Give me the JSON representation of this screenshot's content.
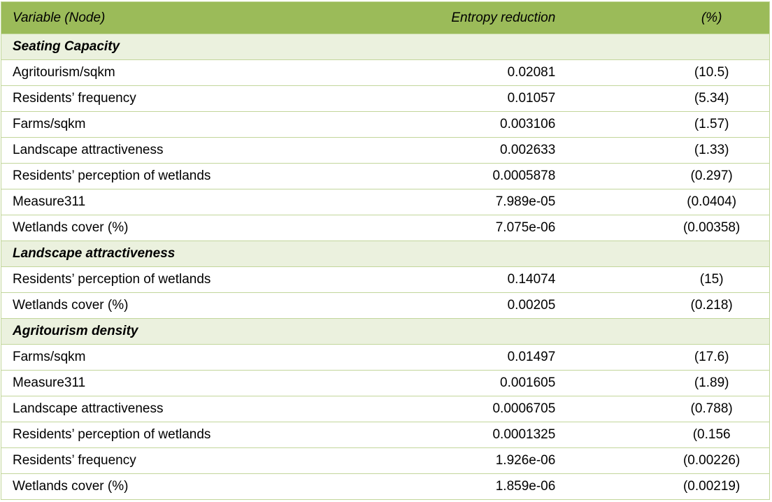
{
  "header": {
    "variable": "Variable (Node)",
    "entropy": "Entropy reduction",
    "percent": "(%)"
  },
  "colors": {
    "header_bg": "#9bbb59",
    "section_bg": "#ebf1de",
    "border": "#c2d69b"
  },
  "sections": [
    {
      "title": "Seating Capacity",
      "rows": [
        {
          "variable": "Agritourism/sqkm",
          "entropy": "0.02081",
          "percent": "(10.5)"
        },
        {
          "variable": "Residents’ frequency",
          "entropy": "0.01057",
          "percent": "(5.34)"
        },
        {
          "variable": "Farms/sqkm",
          "entropy": "0.003106",
          "percent": "(1.57)"
        },
        {
          "variable": "Landscape attractiveness",
          "entropy": "0.002633",
          "percent": "(1.33)"
        },
        {
          "variable": "Residents’ perception of wetlands",
          "entropy": "0.0005878",
          "percent": "(0.297)"
        },
        {
          "variable": "Measure311",
          "entropy": "7.989e-05",
          "percent": "(0.0404)"
        },
        {
          "variable": "Wetlands cover (%)",
          "entropy": "7.075e-06",
          "percent": "(0.00358)"
        }
      ]
    },
    {
      "title": "Landscape attractiveness",
      "rows": [
        {
          "variable": "Residents’ perception of wetlands",
          "entropy": "0.14074",
          "percent": "(15)"
        },
        {
          "variable": "Wetlands cover (%)",
          "entropy": "0.00205",
          "percent": "(0.218)"
        }
      ]
    },
    {
      "title": "Agritourism density",
      "rows": [
        {
          "variable": "Farms/sqkm",
          "entropy": "0.01497",
          "percent": "(17.6)"
        },
        {
          "variable": "Measure311",
          "entropy": "0.001605",
          "percent": "(1.89)"
        },
        {
          "variable": "Landscape attractiveness",
          "entropy": "0.0006705",
          "percent": "(0.788)"
        },
        {
          "variable": "Residents’ perception of wetlands",
          "entropy": "0.0001325",
          "percent": "(0.156"
        },
        {
          "variable": "Residents’ frequency",
          "entropy": "1.926e-06",
          "percent": "(0.00226)"
        },
        {
          "variable": "Wetlands cover (%)",
          "entropy": "1.859e-06",
          "percent": "(0.00219)"
        }
      ]
    }
  ]
}
